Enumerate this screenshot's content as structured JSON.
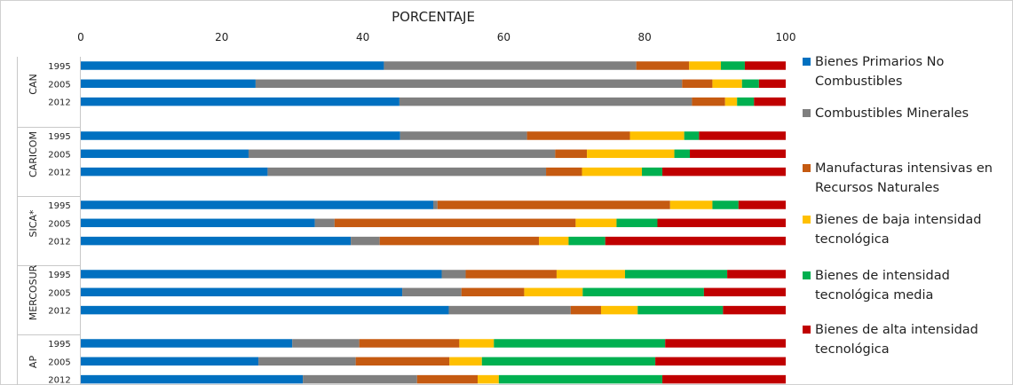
{
  "chart_data": {
    "type": "bar",
    "orientation": "horizontal",
    "stacked": true,
    "title": "PORCENTAJE",
    "xlim": [
      0,
      100
    ],
    "xticks": [
      0,
      20,
      40,
      60,
      80,
      100
    ],
    "grid": false,
    "legend_position": "right",
    "groups": [
      {
        "name": "CAN",
        "years": [
          "1995",
          "2005",
          "2012"
        ]
      },
      {
        "name": "CARICOM",
        "years": [
          "1995",
          "2005",
          "2012"
        ]
      },
      {
        "name": "SICA*",
        "years": [
          "1995",
          "2005",
          "2012"
        ]
      },
      {
        "name": "MERCOSUR",
        "years": [
          "1995",
          "2005",
          "2012"
        ]
      },
      {
        "name": "AP",
        "years": [
          "1995",
          "2005",
          "2012"
        ]
      }
    ],
    "series": [
      {
        "name": "Bienes Primarios No Combustibles",
        "legend_lines": [
          "Bienes Primarios No",
          "Combustibles"
        ],
        "color": "#0070C0",
        "values": [
          43,
          24.8,
          45.2,
          45.3,
          23.8,
          26.5,
          50,
          33.2,
          38.3,
          51.2,
          45.6,
          52.2,
          30,
          25.2,
          31.5
        ]
      },
      {
        "name": "Combustibles Minerales",
        "legend_lines": [
          "Combustibles Minerales"
        ],
        "color": "#7F7F7F",
        "values": [
          35.8,
          60.5,
          41.5,
          18,
          43.5,
          39.5,
          0.6,
          2.8,
          4.1,
          3.4,
          8.4,
          17.3,
          9.5,
          13.8,
          16.2
        ]
      },
      {
        "name": "Manufacturas intensivas en Recursos Naturales",
        "legend_lines": [
          "Manufacturas intensivas en",
          "Recursos Naturales"
        ],
        "color": "#C55A11",
        "values": [
          7.5,
          4.3,
          4.7,
          14.6,
          4.5,
          5.1,
          33,
          34.2,
          22.6,
          12.9,
          8.9,
          4.3,
          14.2,
          13.3,
          8.6
        ]
      },
      {
        "name": "Bienes de baja intensidad tecnológica",
        "legend_lines": [
          "Bienes de baja intensidad",
          "tecnológica"
        ],
        "color": "#FFC000",
        "values": [
          4.5,
          4.2,
          1.7,
          7.7,
          12.4,
          8.5,
          6,
          5.8,
          4.2,
          9.7,
          8.3,
          5.2,
          4.9,
          4.6,
          3
        ]
      },
      {
        "name": "Bienes de intensidad tecnológica media",
        "legend_lines": [
          "Bienes de intensidad",
          "tecnológica media"
        ],
        "color": "#00B050",
        "values": [
          3.4,
          2.4,
          2.4,
          2.1,
          2.2,
          2.9,
          3.7,
          5.8,
          5.2,
          14.5,
          17.2,
          12.1,
          24.3,
          24.6,
          23.2
        ]
      },
      {
        "name": "Bienes de alta intensidad tecnológica",
        "legend_lines": [
          "Bienes de alta intensidad",
          "tecnológica"
        ],
        "color": "#C00000",
        "values": [
          5.8,
          3.8,
          4.5,
          12.3,
          13.6,
          17.5,
          6.7,
          18.2,
          25.6,
          8.3,
          11.6,
          8.9,
          17.1,
          18.5,
          17.5
        ]
      }
    ]
  }
}
